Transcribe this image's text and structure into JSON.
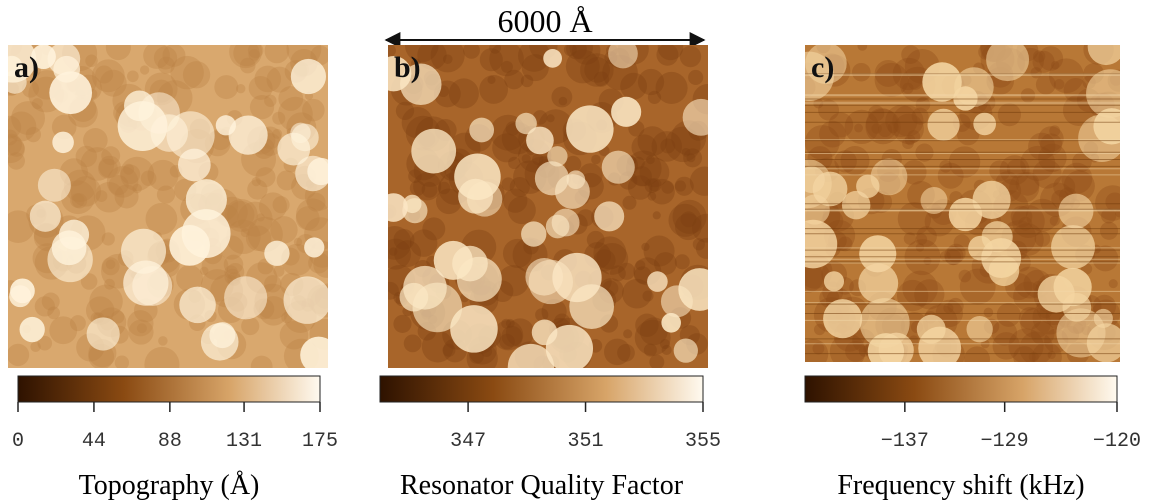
{
  "scale_bar": "6000 Å",
  "panels": [
    {
      "label": "a)",
      "colorbar": {
        "range": [
          0,
          175
        ],
        "ticks": [
          0,
          44,
          88,
          131,
          175
        ]
      },
      "caption": "Topography (Å)"
    },
    {
      "label": "b)",
      "colorbar": {
        "range": [
          344,
          355
        ],
        "ticks": [
          347,
          351,
          355
        ]
      },
      "caption": "Resonator Quality Factor"
    },
    {
      "label": "c)",
      "colorbar": {
        "range": [
          -145,
          -120
        ],
        "ticks": [
          {
            "value": -137,
            "label": "−137"
          },
          {
            "value": -129,
            "label": "−129"
          },
          {
            "value": -120,
            "label": "−120"
          }
        ]
      },
      "caption": "Frequency shift (kHz)"
    }
  ]
}
